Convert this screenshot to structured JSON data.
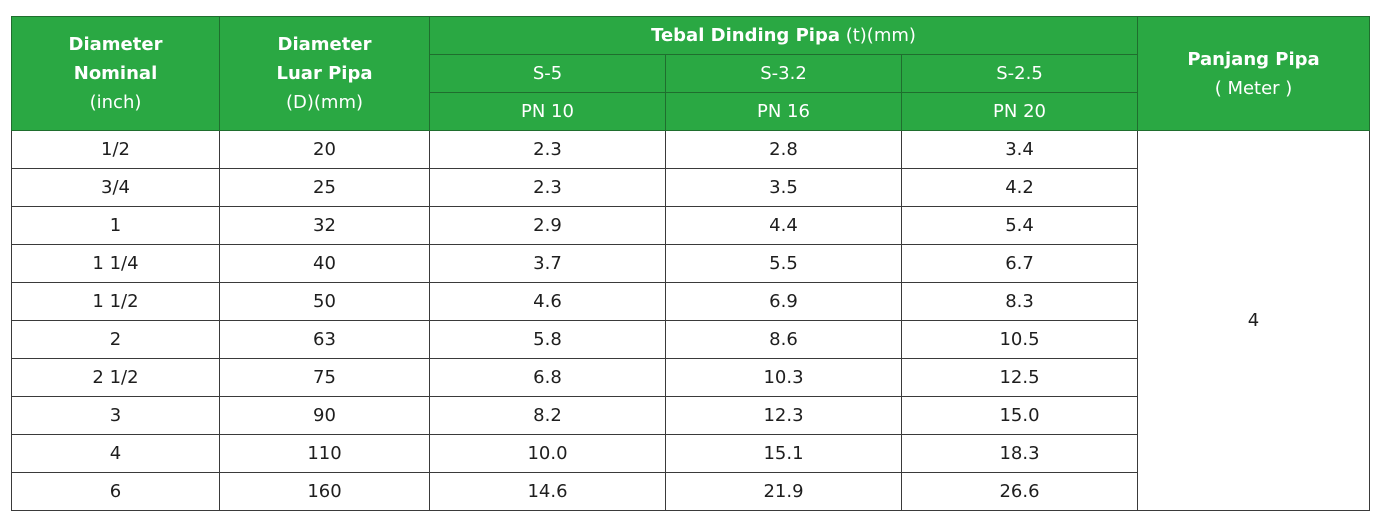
{
  "header": {
    "col1": {
      "line1": "Diameter",
      "line2": "Nominal",
      "line3": "(inch)"
    },
    "col2": {
      "line1": "Diameter",
      "line2": "Luar Pipa",
      "line3": "(D)(mm)"
    },
    "wall_group": {
      "bold": "Tebal Dinding Pipa",
      "normal": " (t)(mm)"
    },
    "series": [
      {
        "s": "S-5",
        "pn": "PN 10"
      },
      {
        "s": "S-3.2",
        "pn": "PN 16"
      },
      {
        "s": "S-2.5",
        "pn": "PN 20"
      }
    ],
    "length": {
      "line1": "Panjang Pipa",
      "line2": "( Meter )"
    }
  },
  "rows": [
    {
      "nominal": "1/2",
      "od": "20",
      "s5": "2.3",
      "s32": "2.8",
      "s25": "3.4"
    },
    {
      "nominal": "3/4",
      "od": "25",
      "s5": "2.3",
      "s32": "3.5",
      "s25": "4.2"
    },
    {
      "nominal": "1",
      "od": "32",
      "s5": "2.9",
      "s32": "4.4",
      "s25": "5.4"
    },
    {
      "nominal": "1 1/4",
      "od": "40",
      "s5": "3.7",
      "s32": "5.5",
      "s25": "6.7"
    },
    {
      "nominal": "1 1/2",
      "od": "50",
      "s5": "4.6",
      "s32": "6.9",
      "s25": "8.3"
    },
    {
      "nominal": "2",
      "od": "63",
      "s5": "5.8",
      "s32": "8.6",
      "s25": "10.5"
    },
    {
      "nominal": "2 1/2",
      "od": "75",
      "s5": "6.8",
      "s32": "10.3",
      "s25": "12.5"
    },
    {
      "nominal": "3",
      "od": "90",
      "s5": "8.2",
      "s32": "12.3",
      "s25": "15.0"
    },
    {
      "nominal": "4",
      "od": "110",
      "s5": "10.0",
      "s32": "15.1",
      "s25": "18.3"
    },
    {
      "nominal": "6",
      "od": "160",
      "s5": "14.6",
      "s32": "21.9",
      "s25": "26.6"
    }
  ],
  "length_value": "4"
}
